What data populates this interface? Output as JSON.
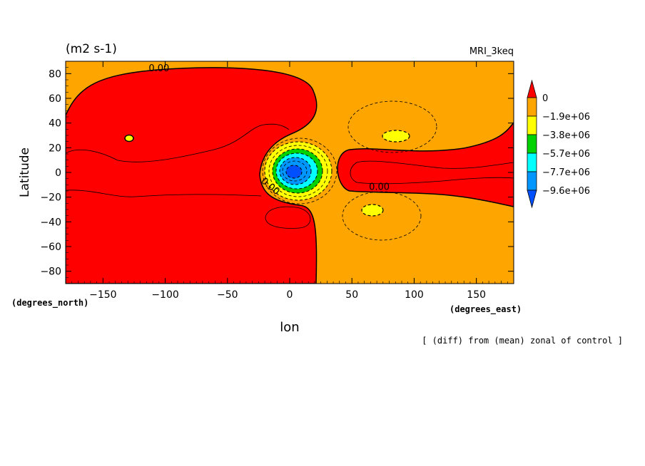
{
  "chart_data": {
    "type": "heatmap",
    "units_label": "(m2 s-1)",
    "model_label": "MRI_3keq",
    "xlabel": "lon",
    "ylabel": "Latitude",
    "x_unit_label": "(degrees_east)",
    "y_unit_label": "(degrees_north)",
    "footer_note": "[ (diff) from (mean) zonal of control ]",
    "xlim": [
      -180,
      180
    ],
    "ylim": [
      -90,
      90
    ],
    "x_ticks": [
      -150,
      -100,
      -50,
      0,
      50,
      100,
      150
    ],
    "y_ticks": [
      -80,
      -60,
      -40,
      -20,
      0,
      20,
      40,
      60,
      80
    ],
    "contour_labels": [
      {
        "text": "0.00",
        "lon": -105,
        "lat": 82
      },
      {
        "text": "0.00",
        "lon": -17,
        "lat": -13
      },
      {
        "text": "0.00",
        "lon": 72,
        "lat": -14
      }
    ],
    "colorbar": {
      "labels": [
        "0",
        "-1.9e+06",
        "-3.8e+06",
        "-5.7e+06",
        "-7.7e+06",
        "-9.6e+06"
      ],
      "colors": [
        "#ff0000",
        "#ffa500",
        "#ffff00",
        "#00d200",
        "#00ffff",
        "#0096ff",
        "#0050ff"
      ]
    }
  }
}
